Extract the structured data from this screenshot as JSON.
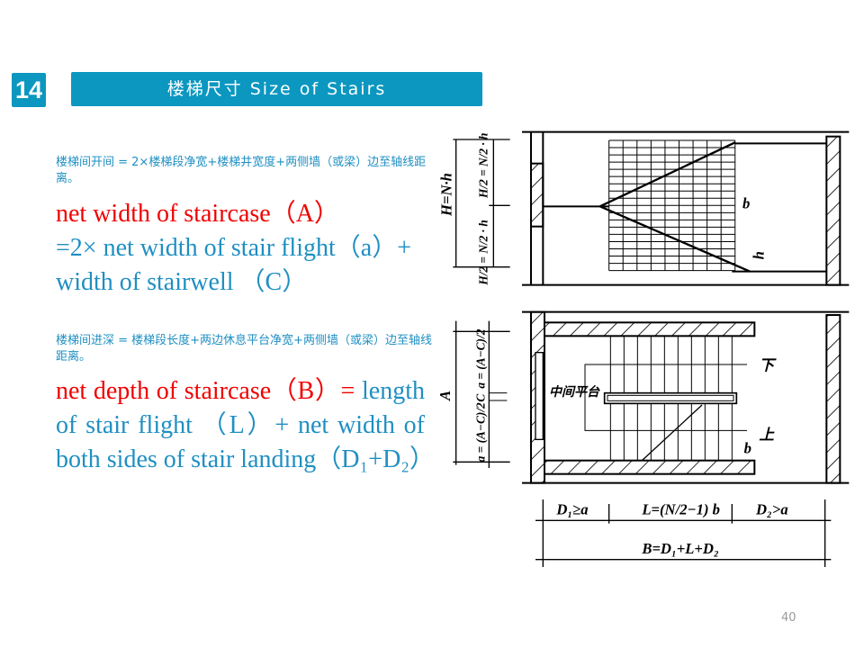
{
  "slide": {
    "number": "14",
    "title": "楼梯尺寸 Size of Stairs",
    "page_number": "40"
  },
  "content": {
    "width_cn": "楼梯间开间 = 2×楼梯段净宽+楼梯井宽度+两侧墙（或梁）边至轴线距离。",
    "width_en_red": "net width of staircase（A）",
    "width_en_blue": "=2× net width of stair flight（a）+ width of stairwell （C）",
    "depth_cn": "楼梯间进深 = 楼梯段长度+两边休息平台净宽+两侧墙（或梁）边至轴线距离。",
    "depth_en_red": "net depth of staircase（B）=",
    "depth_en_blue": "length of stair flight （L）+ net width of both sides of stair landing（D₁+D₂）"
  },
  "diagram": {
    "labels": {
      "H_total": "H=N·h",
      "H_half_top": "H/2 = N/2 · h",
      "H_half_bottom": "H/2 = N/2 · h",
      "b_top": "b",
      "h": "h",
      "A": "A",
      "a_top": "a = (A−C)/2",
      "C": "C",
      "a_bottom": "a = (A−C)/2",
      "landing": "中间平台",
      "down": "下",
      "up": "上",
      "b_bottom": "b",
      "D1": "D₁≥a",
      "L": "L=(N/2−1) b",
      "D2": "D₂>a",
      "B": "B=D₁+L+D₂"
    }
  }
}
